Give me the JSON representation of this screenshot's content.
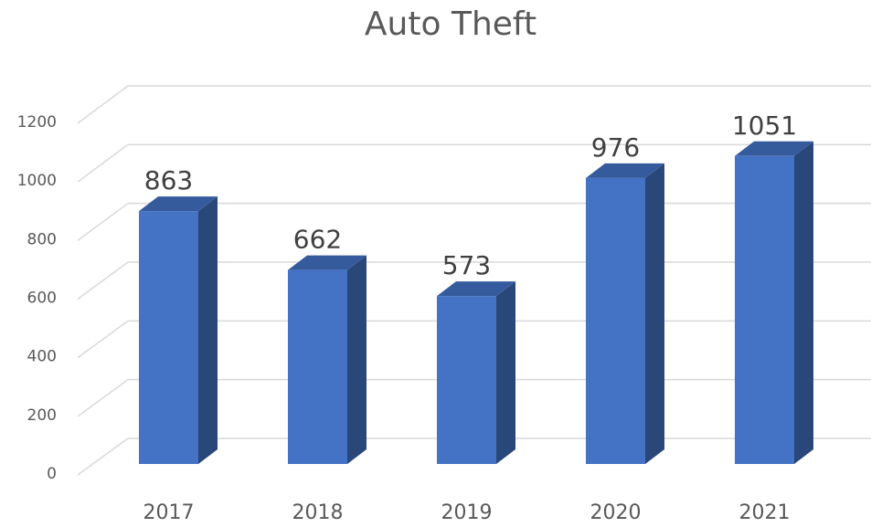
{
  "chart_data": {
    "type": "bar",
    "title": "Auto Theft",
    "categories": [
      "2017",
      "2018",
      "2019",
      "2020",
      "2021"
    ],
    "values": [
      863,
      662,
      573,
      976,
      1051
    ],
    "color": "#4472c4",
    "ylim": [
      0,
      1200
    ],
    "yticks": [
      0,
      200,
      400,
      600,
      800,
      1000,
      1200
    ],
    "grid": true
  }
}
